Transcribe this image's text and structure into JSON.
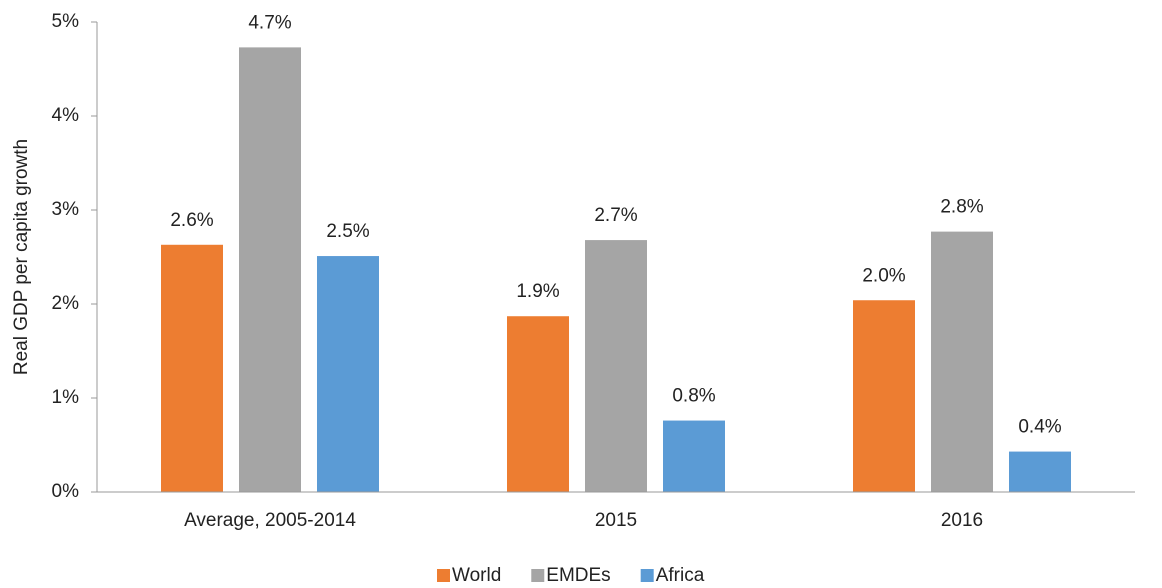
{
  "chart_data": {
    "type": "bar",
    "y_label": "Real GDP per capita growth",
    "categories": [
      "Average, 2005-2014",
      "2015",
      "2016"
    ],
    "series": [
      {
        "name": "World",
        "color": "#ed7d31",
        "values": [
          2.63,
          1.87,
          2.04
        ],
        "value_labels": [
          "2.6%",
          "1.9%",
          "2.0%"
        ]
      },
      {
        "name": "EMDEs",
        "color": "#a5a5a5",
        "values": [
          4.73,
          2.68,
          2.77
        ],
        "value_labels": [
          "4.7%",
          "2.7%",
          "2.8%"
        ]
      },
      {
        "name": "Africa",
        "color": "#5b9bd5",
        "values": [
          2.51,
          0.76,
          0.43
        ],
        "value_labels": [
          "2.5%",
          "0.8%",
          "0.4%"
        ]
      }
    ],
    "ylim": [
      0,
      5
    ],
    "yticks": [
      {
        "value": 0,
        "label": "0%"
      },
      {
        "value": 1,
        "label": "1%"
      },
      {
        "value": 2,
        "label": "2%"
      },
      {
        "value": 3,
        "label": "3%"
      },
      {
        "value": 4,
        "label": "4%"
      },
      {
        "value": 5,
        "label": "5%"
      }
    ],
    "legend": "bottom"
  }
}
